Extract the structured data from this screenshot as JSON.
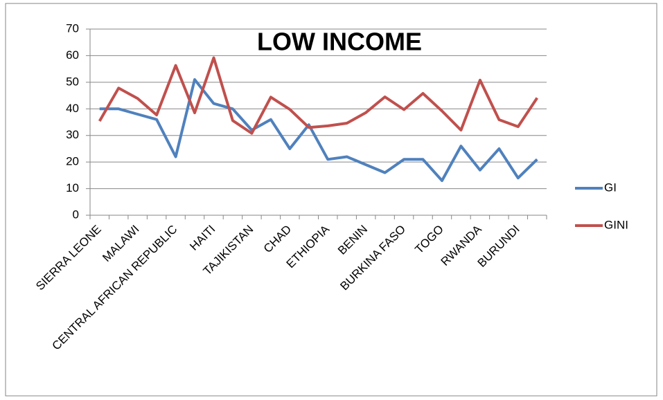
{
  "chart_data": {
    "type": "line",
    "title": "LOW INCOME",
    "categories": [
      "SIERRA LEONE",
      null,
      "MALAWI",
      null,
      "CENTRAL AFRICAN REPUBLIC",
      null,
      "HAITI",
      null,
      "TAJIKISTAN",
      null,
      "CHAD",
      null,
      "ETHIOPIA",
      null,
      "BENIN",
      null,
      "BURKINA FASO",
      null,
      "TOGO",
      null,
      "RWANDA",
      null,
      "BURUNDI",
      null
    ],
    "series": [
      {
        "name": "GI",
        "color": "#4f81bd",
        "values": [
          40,
          40,
          38,
          36,
          22,
          51,
          42,
          40,
          32,
          36,
          25,
          34,
          21,
          22,
          19,
          16,
          21,
          21,
          13,
          26,
          17,
          25,
          14,
          21
        ]
      },
      {
        "name": "GINI",
        "color": "#c0504d",
        "values": [
          35.4,
          47.8,
          43.9,
          37.7,
          56.3,
          38.5,
          59.2,
          35.6,
          30.8,
          44.4,
          39.8,
          33.0,
          33.6,
          34.6,
          38.6,
          44.5,
          39.7,
          45.8,
          39.2,
          32.0,
          50.8,
          35.9,
          33.3,
          44.1
        ]
      }
    ],
    "ylim": [
      0,
      70
    ],
    "yticks": [
      0,
      10,
      20,
      30,
      40,
      50,
      60,
      70
    ],
    "grid": true,
    "legend": "right"
  }
}
